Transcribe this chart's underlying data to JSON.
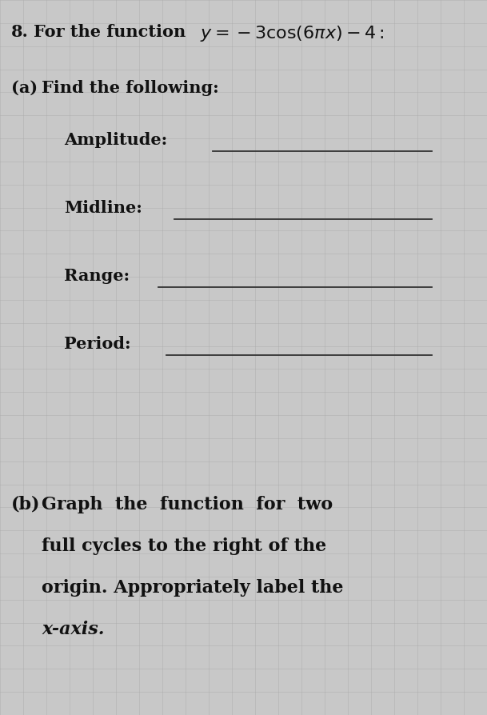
{
  "problem_number": "8.",
  "part_a_label": "(a)",
  "part_a_text": "Find the following:",
  "fields": [
    "Amplitude:",
    "Midline:",
    "Range:",
    "Period:"
  ],
  "part_b_label": "(b)",
  "part_b_lines": [
    "Graph  the  function  for  two",
    "full cycles to the right of the",
    "origin. Appropriately label the",
    "x-axis."
  ],
  "bg_color": "#c8c8c8",
  "text_color": "#111111",
  "line_color": "#333333",
  "grid_color": "#aaaaaa",
  "fig_width": 6.09,
  "fig_height": 8.94,
  "dpi": 100,
  "title_fontsize": 15,
  "body_fontsize": 15,
  "field_fontsize": 15,
  "partb_fontsize": 16
}
